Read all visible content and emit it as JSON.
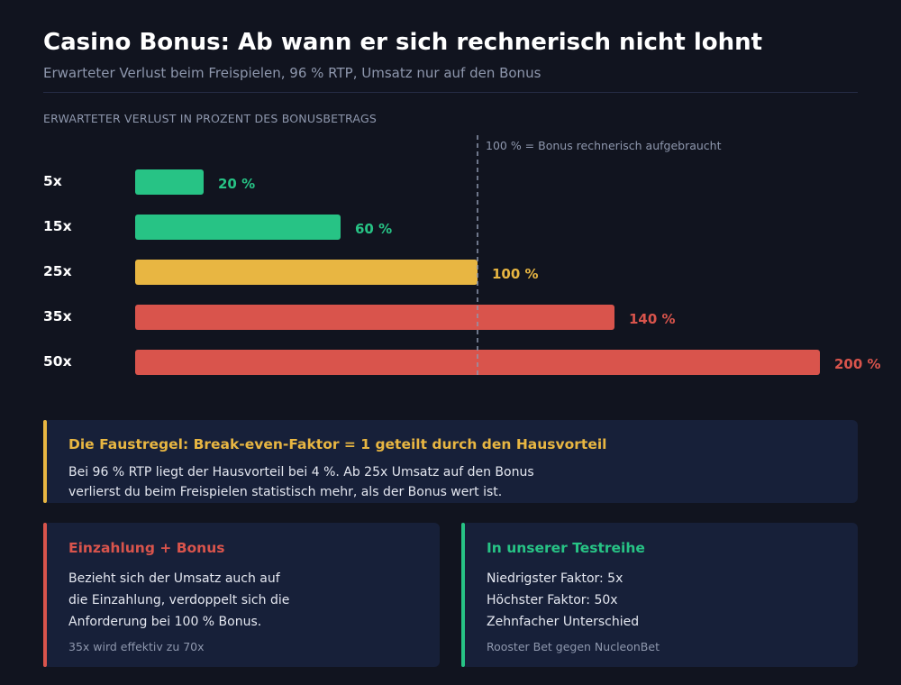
{
  "header": {
    "title": "Casino Bonus: Ab wann er sich rechnerisch nicht lohnt",
    "subtitle": "Erwarteter Verlust beim Freispielen, 96 % RTP, Umsatz nur auf den Bonus"
  },
  "chart_data": {
    "type": "bar",
    "orientation": "horizontal",
    "title": "Casino Bonus: Ab wann er sich rechnerisch nicht lohnt",
    "subtitle": "Erwarteter Verlust beim Freispielen, 96 % RTP, Umsatz nur auf den Bonus",
    "section_label": "ERWARTETER VERLUST IN PROZENT DES BONUSBETRAGS",
    "categories": [
      "5x",
      "15x",
      "25x",
      "35x",
      "50x"
    ],
    "values": [
      20,
      60,
      100,
      140,
      200
    ],
    "value_labels": [
      "20 %",
      "60 %",
      "100 %",
      "140 %",
      "200 %"
    ],
    "colors": [
      "#27c385",
      "#27c385",
      "#e8b642",
      "#d9544c",
      "#d9544c"
    ],
    "xlim": [
      0,
      200
    ],
    "reference_line": {
      "value": 100,
      "label": "100 % = Bonus rechnerisch aufgebraucht"
    },
    "grid": false,
    "legend": "none"
  },
  "callout": {
    "title": "Die Faustregel: Break-even-Faktor = 1 geteilt durch den Hausvorteil",
    "lines": [
      "Bei 96 % RTP liegt der Hausvorteil bei 4 %. Ab 25x Umsatz auf den Bonus",
      "verlierst du beim Freispielen statistisch mehr, als der Bonus wert ist."
    ],
    "accent": "#e8b642"
  },
  "cards": [
    {
      "title": "Einzahlung + Bonus",
      "lines": [
        "Bezieht sich der Umsatz auch auf",
        "die Einzahlung, verdoppelt sich die",
        "Anforderung bei 100 % Bonus."
      ],
      "foot": "35x wird effektiv zu 70x",
      "accent": "#d9544c"
    },
    {
      "title": "In unserer Testreihe",
      "lines": [
        "Niedrigster Faktor: 5x",
        "Höchster Faktor: 50x",
        "Zehnfacher Unterschied"
      ],
      "foot": "Rooster Bet gegen NucleonBet",
      "accent": "#27c385"
    }
  ]
}
